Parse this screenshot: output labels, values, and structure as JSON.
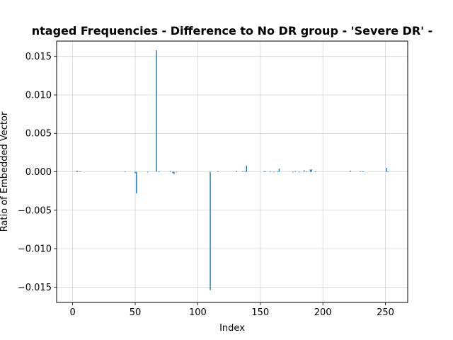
{
  "chart_data": {
    "type": "bar",
    "title": "ntaged Frequencies - Difference to No DR group - 'Severe DR' -",
    "xlabel": "Index",
    "ylabel": "Ratio of Embedded Vector",
    "xlim": [
      -12.8,
      267.8
    ],
    "ylim": [
      -0.017,
      0.017
    ],
    "xticks": [
      0,
      50,
      100,
      150,
      200,
      250
    ],
    "xtick_labels": [
      "0",
      "50",
      "100",
      "150",
      "200",
      "250"
    ],
    "yticks": [
      -0.015,
      -0.01,
      -0.005,
      0.0,
      0.005,
      0.01,
      0.015
    ],
    "ytick_labels": [
      "−0.015",
      "−0.010",
      "−0.005",
      "0.000",
      "0.005",
      "0.010",
      "0.015"
    ],
    "grid": true,
    "bar_color": "#1f77b4",
    "x": [
      3,
      4,
      6,
      42,
      50,
      51,
      60,
      67,
      69,
      78,
      80,
      81,
      83,
      110,
      116,
      131,
      136,
      138,
      139,
      153,
      154,
      158,
      161,
      164,
      165,
      176,
      178,
      181,
      185,
      187,
      190,
      191,
      194,
      222,
      230,
      232,
      251,
      252
    ],
    "values": [
      0.0001,
      0.0001,
      5e-05,
      7e-05,
      -0.0002,
      -0.0028,
      -8e-05,
      0.0158,
      4e-05,
      0.0001,
      -0.00015,
      -0.0003,
      -6e-05,
      -0.0154,
      5e-05,
      0.00012,
      0.0001,
      3e-05,
      0.0008,
      8e-05,
      6e-05,
      7e-05,
      2e-05,
      5e-05,
      0.0004,
      -7e-05,
      8e-05,
      -3e-05,
      0.0002,
      5e-05,
      0.0003,
      0.0003,
      6e-05,
      0.00015,
      8e-05,
      5e-05,
      0.0005,
      3e-05
    ]
  }
}
